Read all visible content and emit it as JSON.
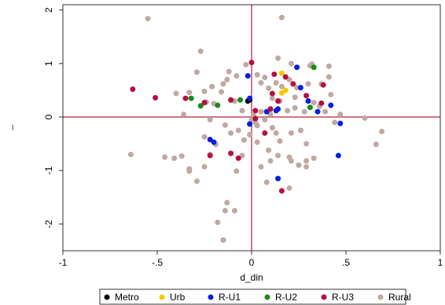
{
  "chart_data": {
    "type": "scatter",
    "xlabel": "d_din",
    "ylabel": "_",
    "xlim": [
      -1,
      1
    ],
    "ylim": [
      -2.5,
      2.1
    ],
    "x_ticks": [
      -1,
      -0.5,
      0,
      0.5,
      1
    ],
    "x_tick_labels": [
      "-1",
      "-.5",
      "0",
      ".5",
      "1"
    ],
    "y_ticks": [
      -2,
      -1,
      0,
      1,
      2
    ],
    "y_tick_labels": [
      "-2",
      "-1",
      "0",
      "1",
      "2"
    ],
    "reference_lines": {
      "x": 0,
      "y": 0,
      "color": "#b0203a"
    },
    "legend_position": "bottom",
    "series": [
      {
        "name": "Metro",
        "color": "#000000",
        "points": [
          [
            -0.01,
            0.32
          ],
          [
            -0.02,
            0.3
          ]
        ]
      },
      {
        "name": "Urb",
        "color": "#f5c800",
        "points": [
          [
            0.16,
            0.82
          ],
          [
            0.16,
            0.45
          ],
          [
            0.18,
            0.5
          ]
        ]
      },
      {
        "name": "R-U1",
        "color": "#0a1ee0",
        "points": [
          [
            -0.02,
            0.77
          ],
          [
            -0.01,
            0.35
          ],
          [
            0.14,
            0.15
          ],
          [
            0.08,
            0.1
          ],
          [
            0.24,
            0.93
          ],
          [
            0.26,
            0.55
          ],
          [
            0.3,
            0.3
          ],
          [
            0.35,
            0.1
          ],
          [
            0.42,
            0.22
          ],
          [
            0.47,
            -0.12
          ],
          [
            0.46,
            -0.72
          ],
          [
            -0.22,
            -0.42
          ],
          [
            -0.2,
            -0.47
          ],
          [
            -0.01,
            -0.13
          ],
          [
            0.14,
            -1.15
          ],
          [
            0.13,
            0.12
          ]
        ]
      },
      {
        "name": "R-U2",
        "color": "#1a8a1a",
        "points": [
          [
            -0.32,
            0.35
          ],
          [
            -0.27,
            0.21
          ],
          [
            -0.18,
            0.22
          ],
          [
            -0.06,
            0.32
          ],
          [
            0.33,
            0.93
          ],
          [
            0.31,
            0.18
          ]
        ]
      },
      {
        "name": "R-U3",
        "color": "#b5103e",
        "points": [
          [
            -0.63,
            0.52
          ],
          [
            -0.51,
            0.36
          ],
          [
            -0.35,
            0.35
          ],
          [
            -0.25,
            0.27
          ],
          [
            -0.11,
            0.32
          ],
          [
            0.0,
            1.02
          ],
          [
            0.12,
            0.8
          ],
          [
            0.18,
            0.75
          ],
          [
            0.22,
            0.62
          ],
          [
            0.29,
            0.4
          ],
          [
            0.37,
            0.26
          ],
          [
            0.38,
            0.6
          ],
          [
            0.14,
            0.3
          ],
          [
            0.1,
            0.15
          ],
          [
            0.02,
            0.12
          ],
          [
            0.02,
            -0.03
          ],
          [
            -0.11,
            -0.68
          ],
          [
            -0.07,
            -0.77
          ],
          [
            -0.22,
            -0.72
          ],
          [
            0.07,
            -0.3
          ],
          [
            0.16,
            -1.38
          ],
          [
            0.11,
            0.44
          ]
        ]
      },
      {
        "name": "Rural",
        "color": "#c0a8a3",
        "points": [
          [
            -0.55,
            1.84
          ],
          [
            0.16,
            1.86
          ],
          [
            -0.27,
            1.23
          ],
          [
            -0.03,
            0.98
          ],
          [
            0.14,
            1.1
          ],
          [
            0.21,
            1.0
          ],
          [
            0.31,
            0.96
          ],
          [
            0.32,
            0.99
          ],
          [
            0.41,
            0.95
          ],
          [
            0.41,
            0.75
          ],
          [
            0.42,
            0.42
          ],
          [
            0.37,
            0.62
          ],
          [
            0.3,
            0.62
          ],
          [
            0.23,
            0.37
          ],
          [
            0.2,
            0.7
          ],
          [
            0.16,
            0.57
          ],
          [
            0.13,
            0.64
          ],
          [
            0.09,
            0.54
          ],
          [
            0.05,
            0.64
          ],
          [
            0.07,
            0.74
          ],
          [
            0.03,
            0.79
          ],
          [
            -0.08,
            0.77
          ],
          [
            -0.13,
            0.7
          ],
          [
            -0.15,
            0.62
          ],
          [
            -0.12,
            0.85
          ],
          [
            -0.29,
            0.84
          ],
          [
            -0.33,
            0.46
          ],
          [
            -0.4,
            0.44
          ],
          [
            -0.25,
            0.48
          ],
          [
            -0.21,
            0.57
          ],
          [
            -0.16,
            0.47
          ],
          [
            -0.24,
            0.28
          ],
          [
            -0.36,
            0.05
          ],
          [
            -0.2,
            0.25
          ],
          [
            -0.09,
            0.3
          ],
          [
            -0.05,
            0.12
          ],
          [
            0.05,
            0.1
          ],
          [
            0.1,
            0.05
          ],
          [
            0.15,
            0.3
          ],
          [
            0.19,
            0.12
          ],
          [
            0.23,
            0.17
          ],
          [
            0.28,
            0.1
          ],
          [
            0.33,
            0.27
          ],
          [
            0.36,
            0.2
          ],
          [
            0.39,
            0.1
          ],
          [
            0.44,
            -0.1
          ],
          [
            0.47,
            0.05
          ],
          [
            0.6,
            -0.02
          ],
          [
            0.69,
            -0.27
          ],
          [
            0.66,
            -0.51
          ],
          [
            -0.64,
            -0.7
          ],
          [
            -0.46,
            -0.75
          ],
          [
            -0.41,
            -0.77
          ],
          [
            -0.37,
            -0.73
          ],
          [
            -0.33,
            -0.97
          ],
          [
            -0.33,
            -1.01
          ],
          [
            -0.29,
            -1.2
          ],
          [
            -0.25,
            -0.93
          ],
          [
            -0.22,
            -0.7
          ],
          [
            -0.25,
            -0.37
          ],
          [
            -0.22,
            -0.05
          ],
          [
            -0.14,
            -0.15
          ],
          [
            -0.11,
            -0.3
          ],
          [
            -0.07,
            -0.25
          ],
          [
            -0.04,
            -0.43
          ],
          [
            -0.01,
            -0.33
          ],
          [
            0.03,
            -0.16
          ],
          [
            0.07,
            -0.05
          ],
          [
            0.11,
            -0.2
          ],
          [
            0.13,
            -0.3
          ],
          [
            0.15,
            -0.45
          ],
          [
            0.21,
            -0.3
          ],
          [
            0.26,
            -0.25
          ],
          [
            0.29,
            -0.5
          ],
          [
            0.33,
            -0.77
          ],
          [
            0.29,
            -0.82
          ],
          [
            0.21,
            -0.82
          ],
          [
            0.25,
            -0.9
          ],
          [
            0.29,
            -0.93
          ],
          [
            0.2,
            -1.33
          ],
          [
            0.1,
            -0.82
          ],
          [
            0.05,
            -0.93
          ],
          [
            0.02,
            -0.1
          ],
          [
            -0.05,
            -0.72
          ],
          [
            -0.08,
            -1.01
          ],
          [
            -0.13,
            -1.6
          ],
          [
            -0.14,
            -1.75
          ],
          [
            -0.09,
            -1.75
          ],
          [
            -0.18,
            -1.97
          ],
          [
            -0.15,
            -2.3
          ],
          [
            0.03,
            -0.47
          ],
          [
            0.09,
            -0.62
          ],
          [
            0.14,
            -0.72
          ],
          [
            0.2,
            -0.75
          ],
          [
            0.08,
            -1.22
          ],
          [
            0.11,
            0.35
          ],
          [
            0.01,
            0.03
          ],
          [
            0.0,
            -0.05
          ],
          [
            0.24,
            0.55
          ],
          [
            -0.19,
            -0.51
          ]
        ]
      }
    ]
  }
}
